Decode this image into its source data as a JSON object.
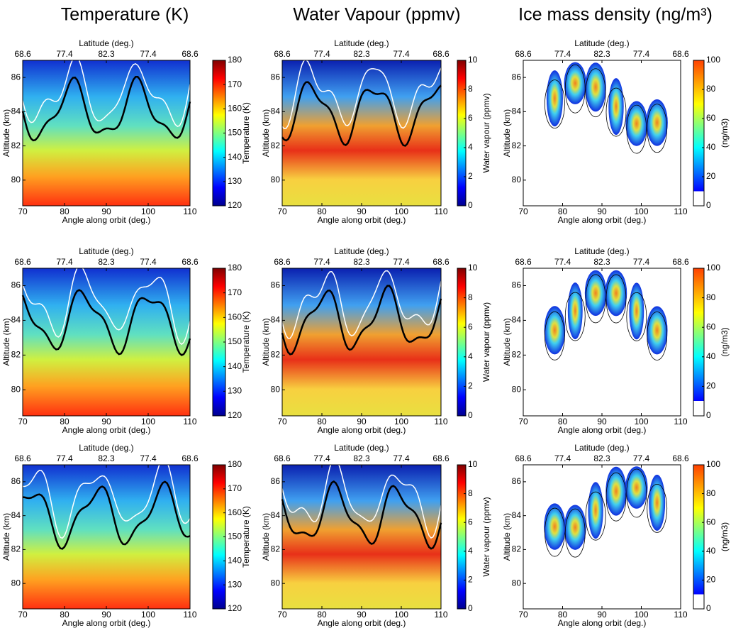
{
  "chart_data": [
    {
      "type": "contour",
      "title": "Temperature (K)",
      "xlabel": "Angle along orbit (deg.)",
      "x2label": "Latitude (deg.)",
      "ylabel": "Altitude (km)",
      "xlim": [
        70,
        110
      ],
      "xticks": [
        70,
        80,
        90,
        100,
        110
      ],
      "x2ticks": [
        {
          "value": 70,
          "label": "68.6"
        },
        {
          "value": 80,
          "label": "77.4"
        },
        {
          "value": 90,
          "label": "82.3"
        },
        {
          "value": 100,
          "label": "77.4"
        },
        {
          "value": 110,
          "label": "68.6"
        }
      ],
      "ylim": [
        78.5,
        87
      ],
      "yticks": [
        80,
        82,
        84,
        86
      ],
      "colorbar": {
        "label": "Temperature (K)",
        "lim": [
          120,
          180
        ],
        "ticks": [
          120,
          130,
          140,
          150,
          160,
          170,
          180
        ],
        "colormap": "jet"
      }
    },
    {
      "type": "contour",
      "title": "Water Vapour (ppmv)",
      "xlabel": "Angle along orbit (deg.)",
      "x2label": "Latitude (deg.)",
      "ylabel": "Altitude (km)",
      "xlim": [
        70,
        110
      ],
      "xticks": [
        70,
        80,
        90,
        100,
        110
      ],
      "x2ticks": [
        {
          "value": 70,
          "label": "68.6"
        },
        {
          "value": 80,
          "label": "77.4"
        },
        {
          "value": 90,
          "label": "82.3"
        },
        {
          "value": 100,
          "label": "77.4"
        },
        {
          "value": 110,
          "label": "68.6"
        }
      ],
      "ylim": [
        78.5,
        87
      ],
      "yticks": [
        80,
        82,
        84,
        86
      ],
      "colorbar": {
        "label": "Water vapour (ppmv)",
        "lim": [
          0,
          10
        ],
        "ticks": [
          0,
          2,
          4,
          6,
          8,
          10
        ],
        "colormap": "jet"
      }
    },
    {
      "type": "contour",
      "title": "Ice mass density (ng/m³)",
      "xlabel": "Angle along orbit (deg.)",
      "x2label": "Latitude (deg.)",
      "ylabel": "Altitude (km)",
      "xlim": [
        70,
        110
      ],
      "xticks": [
        70,
        80,
        90,
        100,
        110
      ],
      "x2ticks": [
        {
          "value": 70,
          "label": "68.6"
        },
        {
          "value": 80,
          "label": "77.4"
        },
        {
          "value": 90,
          "label": "82.3"
        },
        {
          "value": 100,
          "label": "77.4"
        },
        {
          "value": 110,
          "label": "68.6"
        }
      ],
      "ylim": [
        78.5,
        87
      ],
      "yticks": [
        80,
        82,
        84,
        86
      ],
      "colorbar": {
        "label": "(ng/m3)",
        "lim": [
          0,
          100
        ],
        "ticks": [
          0,
          20,
          40,
          60,
          80,
          100
        ],
        "colormap": "jet-white"
      }
    },
    {
      "type": "contour",
      "xlabel": "Angle along orbit (deg.)",
      "x2label": "Latitude (deg.)",
      "ylabel": "Altitude (km)",
      "xlim": [
        70,
        110
      ],
      "xticks": [
        70,
        80,
        90,
        100,
        110
      ],
      "x2ticks": [
        {
          "value": 70,
          "label": "68.6"
        },
        {
          "value": 80,
          "label": "77.4"
        },
        {
          "value": 90,
          "label": "82.3"
        },
        {
          "value": 100,
          "label": "77.4"
        },
        {
          "value": 110,
          "label": "68.6"
        }
      ],
      "ylim": [
        78.5,
        87
      ],
      "yticks": [
        80,
        82,
        84,
        86
      ],
      "colorbar": {
        "label": "Temperature (K)",
        "lim": [
          120,
          180
        ],
        "ticks": [
          120,
          130,
          140,
          150,
          160,
          170,
          180
        ],
        "colormap": "jet"
      }
    },
    {
      "type": "contour",
      "xlabel": "Angle along orbit (deg.)",
      "x2label": "Latitude (deg.)",
      "ylabel": "Altitude (km)",
      "xlim": [
        70,
        110
      ],
      "xticks": [
        70,
        80,
        90,
        100,
        110
      ],
      "x2ticks": [
        {
          "value": 70,
          "label": "68.6"
        },
        {
          "value": 80,
          "label": "77.4"
        },
        {
          "value": 90,
          "label": "82.3"
        },
        {
          "value": 100,
          "label": "77.4"
        },
        {
          "value": 110,
          "label": "68.6"
        }
      ],
      "ylim": [
        78.5,
        87
      ],
      "yticks": [
        80,
        82,
        84,
        86
      ],
      "colorbar": {
        "label": "Water vapour (ppmv)",
        "lim": [
          0,
          10
        ],
        "ticks": [
          0,
          2,
          4,
          6,
          8,
          10
        ],
        "colormap": "jet"
      }
    },
    {
      "type": "contour",
      "xlabel": "Angle along orbit (deg.)",
      "x2label": "Latitude (deg.)",
      "ylabel": "Altitude (km)",
      "xlim": [
        70,
        110
      ],
      "xticks": [
        70,
        80,
        90,
        100,
        110
      ],
      "x2ticks": [
        {
          "value": 70,
          "label": "68.6"
        },
        {
          "value": 80,
          "label": "77.4"
        },
        {
          "value": 90,
          "label": "82.3"
        },
        {
          "value": 100,
          "label": "77.4"
        },
        {
          "value": 110,
          "label": "68.6"
        }
      ],
      "ylim": [
        78.5,
        87
      ],
      "yticks": [
        80,
        82,
        84,
        86
      ],
      "colorbar": {
        "label": "(ng/m3)",
        "lim": [
          0,
          100
        ],
        "ticks": [
          0,
          20,
          40,
          60,
          80,
          100
        ],
        "colormap": "jet-white"
      }
    },
    {
      "type": "contour",
      "xlabel": "Angle along orbit (deg.)",
      "x2label": "Latitude (deg.)",
      "ylabel": "Altitude (km)",
      "xlim": [
        70,
        110
      ],
      "xticks": [
        70,
        80,
        90,
        100,
        110
      ],
      "x2ticks": [
        {
          "value": 70,
          "label": "68.6"
        },
        {
          "value": 80,
          "label": "77.4"
        },
        {
          "value": 90,
          "label": "82.3"
        },
        {
          "value": 100,
          "label": "77.4"
        },
        {
          "value": 110,
          "label": "68.6"
        }
      ],
      "ylim": [
        78.5,
        87
      ],
      "yticks": [
        80,
        82,
        84,
        86
      ],
      "colorbar": {
        "label": "Temperature (K)",
        "lim": [
          120,
          180
        ],
        "ticks": [
          120,
          130,
          140,
          150,
          160,
          170,
          180
        ],
        "colormap": "jet"
      }
    },
    {
      "type": "contour",
      "xlabel": "Angle along orbit (deg.)",
      "x2label": "Latitude (deg.)",
      "ylabel": "Altitude (km)",
      "xlim": [
        70,
        110
      ],
      "xticks": [
        70,
        80,
        90,
        100,
        110
      ],
      "x2ticks": [
        {
          "value": 70,
          "label": "68.6"
        },
        {
          "value": 80,
          "label": "77.4"
        },
        {
          "value": 90,
          "label": "82.3"
        },
        {
          "value": 100,
          "label": "77.4"
        },
        {
          "value": 110,
          "label": "68.6"
        }
      ],
      "ylim": [
        78.5,
        87
      ],
      "yticks": [
        80,
        82,
        84,
        86
      ],
      "colorbar": {
        "label": "Water vapour (ppmv)",
        "lim": [
          0,
          10
        ],
        "ticks": [
          0,
          2,
          4,
          6,
          8,
          10
        ],
        "colormap": "jet"
      }
    },
    {
      "type": "contour",
      "xlabel": "Angle along orbit (deg.)",
      "x2label": "Latitude (deg.)",
      "ylabel": "Altitude (km)",
      "xlim": [
        70,
        110
      ],
      "xticks": [
        70,
        80,
        90,
        100,
        110
      ],
      "x2ticks": [
        {
          "value": 70,
          "label": "68.6"
        },
        {
          "value": 80,
          "label": "77.4"
        },
        {
          "value": 90,
          "label": "82.3"
        },
        {
          "value": 100,
          "label": "77.4"
        },
        {
          "value": 110,
          "label": "68.6"
        }
      ],
      "ylim": [
        78.5,
        87
      ],
      "yticks": [
        80,
        82,
        84,
        86
      ],
      "colorbar": {
        "label": "(ng/m3)",
        "lim": [
          0,
          100
        ],
        "ticks": [
          0,
          20,
          40,
          60,
          80,
          100
        ],
        "colormap": "jet-white"
      }
    }
  ]
}
